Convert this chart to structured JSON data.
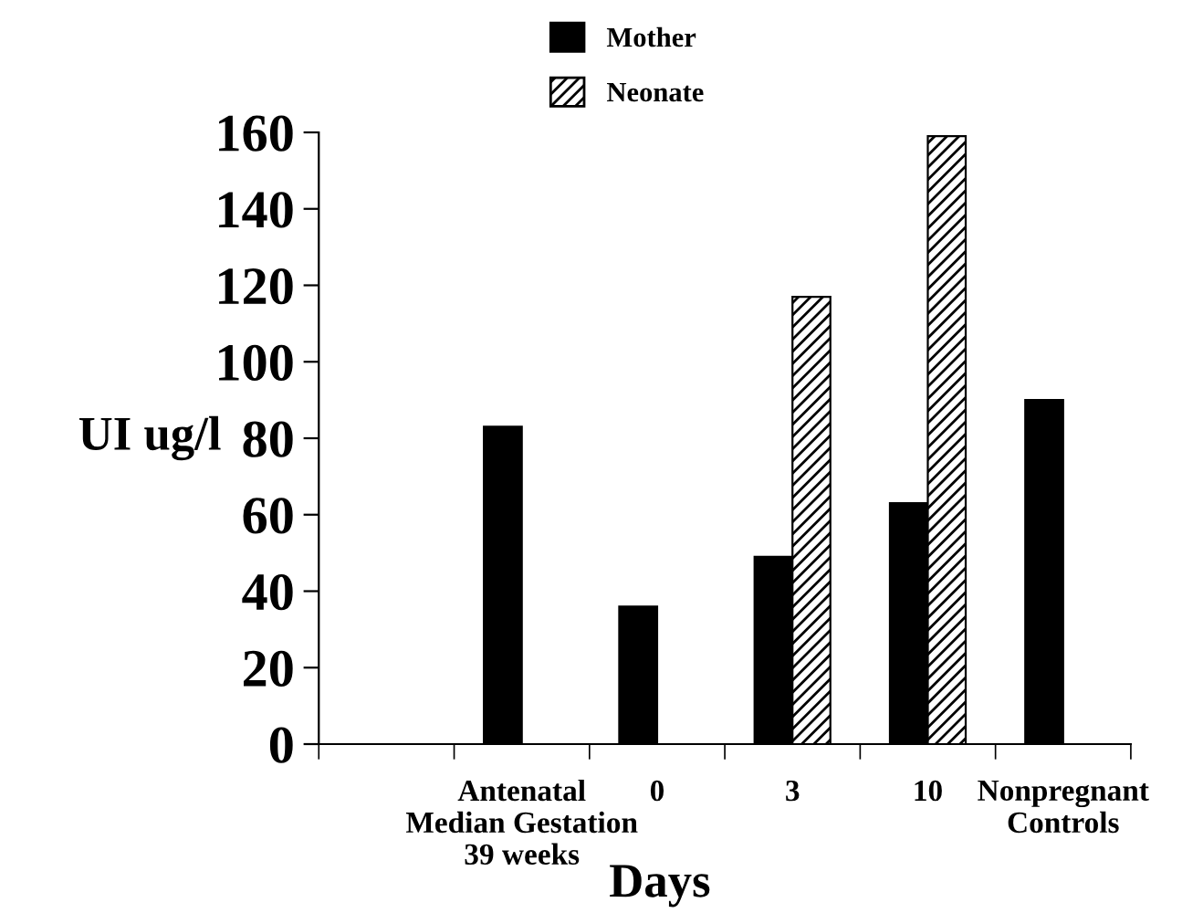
{
  "chart_data": {
    "type": "bar",
    "xlabel": "Days",
    "ylabel": "UI ug/l",
    "categories": [
      "Antenatal\nMedian Gestation\n39 weeks",
      "0",
      "3",
      "10",
      "Nonpregnant\nControls"
    ],
    "series": [
      {
        "name": "Mother",
        "color": "#000000",
        "values": [
          83,
          36,
          49,
          63,
          90
        ]
      },
      {
        "name": "Neonate",
        "color": "#000000",
        "values": [
          null,
          null,
          117,
          159,
          null
        ]
      }
    ],
    "ylim": [
      0,
      160
    ],
    "yticks": [
      0,
      20,
      40,
      60,
      80,
      100,
      120,
      140,
      160
    ],
    "grid": false,
    "legend": "top"
  }
}
